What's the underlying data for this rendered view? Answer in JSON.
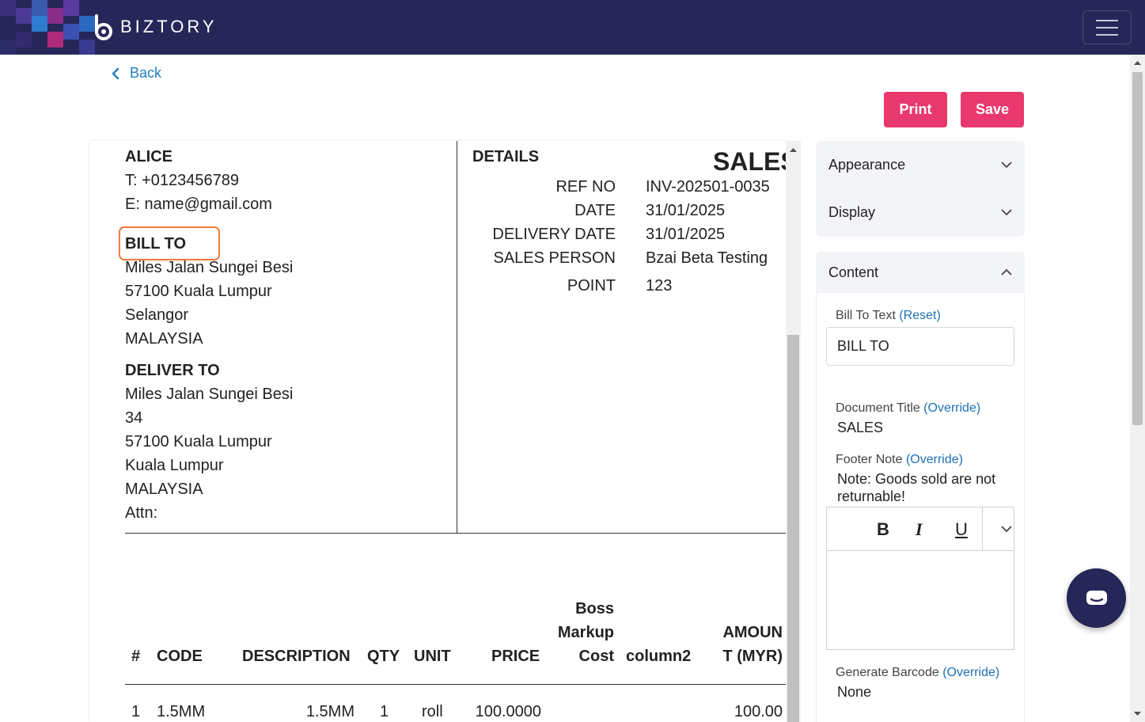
{
  "header": {
    "brand": "BIZTORY",
    "menu_icon": "hamburger-menu-icon"
  },
  "nav": {
    "back_label": "Back"
  },
  "actions": {
    "print_label": "Print",
    "save_label": "Save",
    "accent_color": "#e8386d"
  },
  "document": {
    "company_name": "ALICE",
    "phone": "T: +0123456789",
    "email": "E: name@gmail.com",
    "bill_to_heading": "BILL TO",
    "bill_to_lines": [
      "Miles Jalan Sungei Besi",
      "57100 Kuala Lumpur",
      "Selangor",
      "MALAYSIA"
    ],
    "deliver_to_heading": "DELIVER TO",
    "deliver_to_lines": [
      "Miles Jalan Sungei Besi",
      "34",
      "57100 Kuala Lumpur",
      "Kuala Lumpur",
      "MALAYSIA",
      "Attn:"
    ],
    "details_heading": "DETAILS",
    "doc_title": "SALES",
    "details": [
      {
        "label": "REF NO",
        "value": "INV-202501-0035"
      },
      {
        "label": "DATE",
        "value": "31/01/2025"
      },
      {
        "label": "DELIVERY DATE",
        "value": "31/01/2025"
      },
      {
        "label": "SALES PERSON",
        "value": "Bzai Beta Testing"
      },
      {
        "label": "POINT",
        "value": "123"
      }
    ],
    "table": {
      "headers": {
        "num": "#",
        "code": "CODE",
        "description": "DESCRIPTION",
        "qty": "QTY",
        "unit": "UNIT",
        "price": "PRICE",
        "boss_markup_cost": [
          "Boss",
          "Markup",
          "Cost"
        ],
        "column2": "column2",
        "amount": [
          "AMOUN",
          "T (MYR)"
        ]
      },
      "rows": [
        {
          "num": "1",
          "code": "1.5MM",
          "description": "1.5MM",
          "qty": "1",
          "unit": "roll",
          "price": "100.0000",
          "boss_markup_cost": "",
          "column2": "",
          "amount": "100.00"
        }
      ]
    }
  },
  "settings": {
    "appearance_label": "Appearance",
    "display_label": "Display",
    "content_label": "Content",
    "bill_to_text": {
      "label": "Bill To Text",
      "link": "(Reset)",
      "value": "BILL TO"
    },
    "document_title": {
      "label": "Document Title",
      "link": "(Override)",
      "value": "SALES"
    },
    "footer_note": {
      "label": "Footer Note",
      "link": "(Override)",
      "value_lines": [
        "Note: Goods sold are not",
        "returnable!"
      ]
    },
    "editor_tools": {
      "bold": "B",
      "italic": "I",
      "underline": "U"
    },
    "generate_barcode": {
      "label": "Generate Barcode",
      "link": "(Override)",
      "value": "None"
    }
  }
}
